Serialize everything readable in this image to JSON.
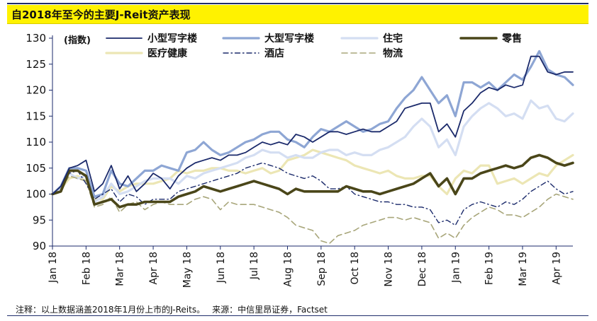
{
  "title": "自2018年至今的主要J-Reit资产表现",
  "footnote": {
    "note": "注释：以上数据涵盖2018年1月份上市的J-Reits。",
    "source": "来源：中信里昂证券，Factset"
  },
  "chart_data": {
    "type": "line",
    "ylabel": "(指数)",
    "ylim": [
      90,
      130
    ],
    "yticks": [
      90,
      95,
      100,
      105,
      110,
      115,
      120,
      125,
      130
    ],
    "xlabels": [
      "Jan 18",
      "Feb 18",
      "Mar 18",
      "Apr 18",
      "May 18",
      "Jun 18",
      "Jul 18",
      "Aug 18",
      "Sep 18",
      "Oct 18",
      "Nov 18",
      "Dec 18",
      "Jan 19",
      "Feb 19",
      "Mar 19",
      "Apr 19"
    ],
    "x": [
      0.0,
      0.25,
      0.5,
      0.75,
      1.0,
      1.25,
      1.5,
      1.75,
      2.0,
      2.25,
      2.5,
      2.75,
      3.0,
      3.25,
      3.5,
      3.75,
      4.0,
      4.25,
      4.5,
      4.75,
      5.0,
      5.25,
      5.5,
      5.75,
      6.0,
      6.25,
      6.5,
      6.75,
      7.0,
      7.25,
      7.5,
      7.75,
      8.0,
      8.25,
      8.5,
      8.75,
      9.0,
      9.25,
      9.5,
      9.75,
      10.0,
      10.25,
      10.5,
      10.75,
      11.0,
      11.25,
      11.5,
      11.75,
      12.0,
      12.25,
      12.5,
      12.75,
      13.0,
      13.25,
      13.5,
      13.75,
      14.0,
      14.25,
      14.5,
      14.75,
      15.0,
      15.25,
      15.5
    ],
    "series": [
      {
        "name": "小型写字楼",
        "color": "#1b2a6b",
        "style": "solid",
        "width": 1.8,
        "values": [
          100.0,
          101.5,
          105.0,
          105.5,
          106.5,
          100.5,
          102.0,
          105.5,
          101.0,
          103.5,
          100.5,
          102.0,
          104.0,
          103.0,
          101.0,
          103.5,
          105.0,
          106.0,
          106.5,
          107.0,
          106.5,
          107.5,
          107.5,
          108.0,
          109.0,
          110.0,
          109.5,
          110.0,
          109.5,
          111.5,
          111.0,
          110.0,
          111.0,
          112.0,
          112.0,
          111.5,
          112.0,
          112.5,
          112.0,
          112.0,
          113.0,
          114.0,
          116.5,
          117.0,
          117.5,
          117.5,
          112.0,
          113.5,
          111.0,
          116.0,
          117.5,
          119.5,
          120.5,
          120.0,
          121.0,
          120.5,
          121.0,
          126.5,
          126.5,
          123.5,
          123.0,
          123.5,
          123.5
        ]
      },
      {
        "name": "大型写字楼",
        "color": "#8ea6d4",
        "style": "solid",
        "width": 3.2,
        "values": [
          100.0,
          101.5,
          105.0,
          105.0,
          104.5,
          99.5,
          100.0,
          104.5,
          102.0,
          101.5,
          103.0,
          104.5,
          104.5,
          105.5,
          105.0,
          104.5,
          108.0,
          108.5,
          110.0,
          108.5,
          107.5,
          108.0,
          109.0,
          110.0,
          110.5,
          111.5,
          112.0,
          112.0,
          110.5,
          110.0,
          109.0,
          111.0,
          112.5,
          112.0,
          113.0,
          114.0,
          113.0,
          112.0,
          112.5,
          113.5,
          114.0,
          116.5,
          118.5,
          120.0,
          122.5,
          120.0,
          117.5,
          119.0,
          115.0,
          121.5,
          121.5,
          120.5,
          121.5,
          120.0,
          121.5,
          123.0,
          122.0,
          124.5,
          127.5,
          124.0,
          123.0,
          122.5,
          121.0
        ]
      },
      {
        "name": "住宅",
        "color": "#d4def2",
        "style": "solid",
        "width": 3.2,
        "values": [
          100.0,
          101.0,
          104.0,
          103.0,
          103.5,
          98.5,
          99.5,
          102.0,
          100.0,
          100.5,
          101.5,
          102.5,
          103.0,
          103.0,
          103.0,
          102.0,
          103.5,
          103.0,
          104.0,
          104.5,
          105.0,
          105.5,
          106.0,
          107.0,
          107.5,
          108.5,
          108.0,
          108.0,
          107.0,
          107.5,
          107.0,
          107.0,
          108.0,
          108.5,
          108.5,
          107.5,
          108.0,
          107.5,
          107.5,
          108.5,
          109.0,
          110.0,
          111.0,
          113.0,
          114.5,
          113.0,
          109.0,
          110.5,
          107.5,
          113.0,
          115.0,
          116.5,
          117.5,
          116.5,
          115.0,
          115.5,
          114.5,
          118.0,
          116.5,
          117.0,
          114.5,
          114.0,
          115.5
        ]
      },
      {
        "name": "零售",
        "color": "#4a4619",
        "style": "solid",
        "width": 3.6,
        "values": [
          100.0,
          100.5,
          104.5,
          104.5,
          103.5,
          98.0,
          98.5,
          99.0,
          97.5,
          98.0,
          98.0,
          98.5,
          98.5,
          98.5,
          98.5,
          99.5,
          100.0,
          100.5,
          101.5,
          101.0,
          100.5,
          101.0,
          101.5,
          102.0,
          102.5,
          102.0,
          101.5,
          101.0,
          100.0,
          101.0,
          100.5,
          100.5,
          100.5,
          100.5,
          100.5,
          101.5,
          101.0,
          100.5,
          100.5,
          100.0,
          100.5,
          101.0,
          101.5,
          102.0,
          103.0,
          104.0,
          101.5,
          103.0,
          100.0,
          103.0,
          103.0,
          104.0,
          104.5,
          105.0,
          105.5,
          105.0,
          105.5,
          107.0,
          107.5,
          107.0,
          106.0,
          105.5,
          106.0
        ]
      },
      {
        "name": "医疗健康",
        "color": "#ece6b4",
        "style": "solid",
        "width": 3.2,
        "values": [
          100.0,
          101.0,
          103.0,
          103.5,
          102.5,
          99.0,
          99.0,
          101.5,
          100.5,
          101.5,
          102.0,
          102.0,
          102.0,
          102.5,
          103.0,
          104.5,
          104.0,
          104.5,
          104.5,
          105.0,
          105.0,
          104.5,
          104.5,
          104.0,
          104.5,
          105.0,
          104.0,
          104.5,
          106.5,
          107.0,
          107.5,
          108.5,
          108.0,
          107.5,
          107.0,
          106.5,
          105.5,
          105.0,
          104.5,
          104.0,
          104.5,
          103.5,
          103.0,
          103.0,
          103.5,
          103.5,
          101.5,
          100.0,
          103.0,
          104.5,
          104.0,
          105.5,
          105.5,
          102.0,
          102.5,
          103.0,
          102.0,
          103.0,
          104.0,
          103.5,
          105.5,
          106.5,
          107.5
        ]
      },
      {
        "name": "酒店",
        "color": "#1b2a6b",
        "style": "dashdot",
        "width": 1.4,
        "values": [
          100.0,
          101.5,
          104.0,
          104.5,
          102.0,
          99.0,
          100.0,
          101.0,
          98.5,
          100.0,
          99.5,
          98.0,
          99.0,
          99.0,
          99.0,
          100.5,
          101.0,
          101.5,
          102.0,
          102.5,
          103.0,
          103.5,
          104.0,
          105.0,
          105.5,
          106.0,
          105.5,
          105.0,
          104.0,
          103.5,
          103.0,
          103.5,
          102.5,
          101.0,
          101.0,
          101.5,
          100.0,
          99.5,
          99.0,
          98.5,
          98.5,
          98.0,
          98.0,
          97.5,
          97.5,
          97.0,
          94.5,
          95.0,
          94.0,
          97.0,
          98.0,
          98.5,
          98.0,
          97.5,
          98.5,
          98.0,
          99.0,
          100.5,
          101.5,
          102.5,
          101.0,
          100.0,
          100.5
        ]
      },
      {
        "name": "物流",
        "color": "#a8a67a",
        "style": "dashed",
        "width": 1.6,
        "values": [
          100.0,
          101.0,
          103.5,
          103.0,
          102.5,
          97.5,
          98.0,
          99.5,
          96.5,
          98.0,
          98.5,
          97.0,
          98.0,
          98.5,
          98.0,
          98.0,
          98.0,
          99.0,
          99.5,
          99.0,
          97.0,
          98.5,
          98.0,
          98.0,
          98.0,
          97.5,
          97.0,
          96.5,
          95.5,
          94.0,
          93.5,
          93.0,
          91.0,
          90.5,
          92.0,
          92.5,
          93.0,
          94.0,
          94.5,
          95.0,
          95.5,
          95.5,
          95.0,
          95.5,
          95.0,
          94.5,
          91.5,
          92.5,
          91.5,
          94.0,
          95.5,
          96.5,
          97.5,
          97.0,
          96.0,
          96.0,
          95.5,
          96.5,
          97.5,
          99.0,
          100.0,
          99.5,
          99.0
        ]
      }
    ]
  }
}
